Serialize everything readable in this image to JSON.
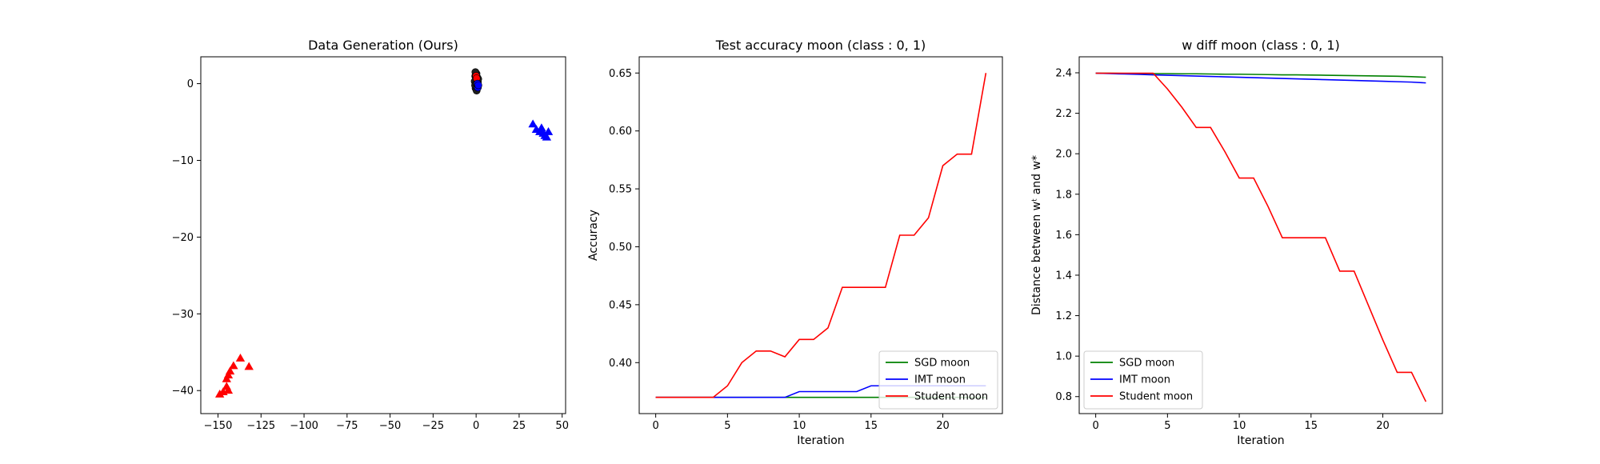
{
  "chart_data": [
    {
      "type": "scatter",
      "title": "Data Generation (Ours)",
      "xlabel": "",
      "ylabel": "",
      "xlim": [
        -160,
        52
      ],
      "ylim": [
        -43,
        3.5
      ],
      "xticks": [
        -150,
        -125,
        -100,
        -75,
        -50,
        -25,
        0,
        25,
        50
      ],
      "yticks": [
        0,
        -10,
        -20,
        -30,
        -40
      ],
      "series": [
        {
          "marker": "circle",
          "color": "#1f1f1f",
          "points": [
            [
              0,
              0.5
            ],
            [
              -0.5,
              1.0
            ],
            [
              0.5,
              -0.3
            ],
            [
              1.0,
              0.2
            ],
            [
              -0.3,
              -0.6
            ],
            [
              0.2,
              1.3
            ],
            [
              -0.8,
              0.3
            ],
            [
              0.7,
              0.8
            ],
            [
              0.3,
              -0.9
            ],
            [
              -0.4,
              1.5
            ],
            [
              0.9,
              -0.5
            ],
            [
              -0.6,
              -0.2
            ],
            [
              0.1,
              0.0
            ],
            [
              1.2,
              0.6
            ],
            [
              -0.2,
              0.9
            ]
          ]
        },
        {
          "marker": "circle",
          "color": "#ff0000",
          "points": [
            [
              0,
              1.0
            ],
            [
              0.3,
              0.7
            ]
          ]
        },
        {
          "marker": "circle",
          "color": "#0000ff",
          "points": [
            [
              1,
              -0.5
            ],
            [
              0.8,
              0.0
            ],
            [
              1.3,
              -0.2
            ]
          ]
        },
        {
          "marker": "triangle",
          "color": "#0000ff",
          "points": [
            [
              33,
              -5.3
            ],
            [
              35,
              -6.0
            ],
            [
              37,
              -6.3
            ],
            [
              38,
              -5.8
            ],
            [
              40,
              -6.8
            ],
            [
              41,
              -7.0
            ],
            [
              42,
              -6.3
            ],
            [
              39,
              -6.5
            ]
          ]
        },
        {
          "marker": "triangle",
          "color": "#ff0000",
          "points": [
            [
              -149,
              -40.5
            ],
            [
              -147,
              -40.2
            ],
            [
              -145,
              -39.5
            ],
            [
              -144,
              -40.0
            ],
            [
              -145,
              -38.5
            ],
            [
              -143,
              -37.5
            ],
            [
              -141,
              -36.8
            ],
            [
              -137,
              -35.8
            ],
            [
              -132,
              -36.9
            ],
            [
              -144,
              -38.0
            ]
          ]
        }
      ]
    },
    {
      "type": "line",
      "title": "Test accuracy moon (class : 0, 1)",
      "xlabel": "Iteration",
      "ylabel": "Accuracy",
      "xlim": [
        -1.15,
        24.15
      ],
      "ylim": [
        0.356,
        0.664
      ],
      "xticks": [
        0,
        5,
        10,
        15,
        20
      ],
      "yticks": [
        0.4,
        0.45,
        0.5,
        0.55,
        0.6,
        0.65
      ],
      "ytick_labels": [
        "0.40",
        "0.45",
        "0.50",
        "0.55",
        "0.60",
        "0.65"
      ],
      "legend_position": "lower-right",
      "x": [
        0,
        1,
        2,
        3,
        4,
        5,
        6,
        7,
        8,
        9,
        10,
        11,
        12,
        13,
        14,
        15,
        16,
        17,
        18,
        19,
        20,
        21,
        22,
        23
      ],
      "series": [
        {
          "name": "SGD moon",
          "color": "#008000",
          "values": [
            0.37,
            0.37,
            0.37,
            0.37,
            0.37,
            0.37,
            0.37,
            0.37,
            0.37,
            0.37,
            0.37,
            0.37,
            0.37,
            0.37,
            0.37,
            0.37,
            0.37,
            0.37,
            0.37,
            0.37,
            0.37,
            0.37,
            0.37,
            0.37
          ]
        },
        {
          "name": "IMT moon",
          "color": "#0000ff",
          "values": [
            0.37,
            0.37,
            0.37,
            0.37,
            0.37,
            0.37,
            0.37,
            0.37,
            0.37,
            0.37,
            0.375,
            0.375,
            0.375,
            0.375,
            0.375,
            0.38,
            0.38,
            0.38,
            0.38,
            0.38,
            0.38,
            0.38,
            0.38,
            0.38
          ]
        },
        {
          "name": "Student moon",
          "color": "#ff0000",
          "values": [
            0.37,
            0.37,
            0.37,
            0.37,
            0.37,
            0.38,
            0.4,
            0.41,
            0.41,
            0.405,
            0.42,
            0.42,
            0.43,
            0.465,
            0.465,
            0.465,
            0.465,
            0.51,
            0.51,
            0.525,
            0.57,
            0.58,
            0.58,
            0.65
          ]
        }
      ]
    },
    {
      "type": "line",
      "title": "w diff moon (class : 0, 1)",
      "xlabel": "Iteration",
      "ylabel": "Distance between wᵗ and w*",
      "xlim": [
        -1.15,
        24.15
      ],
      "ylim": [
        0.716,
        2.479
      ],
      "xticks": [
        0,
        5,
        10,
        15,
        20
      ],
      "yticks": [
        0.8,
        1.0,
        1.2,
        1.4,
        1.6,
        1.8,
        2.0,
        2.2,
        2.4
      ],
      "ytick_labels": [
        "0.8",
        "1.0",
        "1.2",
        "1.4",
        "1.6",
        "1.8",
        "2.0",
        "2.2",
        "2.4"
      ],
      "legend_position": "lower-left",
      "x": [
        0,
        1,
        2,
        3,
        4,
        5,
        6,
        7,
        8,
        9,
        10,
        11,
        12,
        13,
        14,
        15,
        16,
        17,
        18,
        19,
        20,
        21,
        22,
        23
      ],
      "series": [
        {
          "name": "SGD moon",
          "color": "#008000",
          "values": [
            2.398,
            2.398,
            2.397,
            2.397,
            2.396,
            2.396,
            2.395,
            2.395,
            2.394,
            2.393,
            2.393,
            2.392,
            2.391,
            2.39,
            2.39,
            2.389,
            2.388,
            2.387,
            2.386,
            2.385,
            2.384,
            2.383,
            2.381,
            2.378
          ]
        },
        {
          "name": "IMT moon",
          "color": "#0000ff",
          "values": [
            2.398,
            2.396,
            2.394,
            2.392,
            2.39,
            2.388,
            2.386,
            2.384,
            2.382,
            2.38,
            2.378,
            2.376,
            2.374,
            2.372,
            2.37,
            2.368,
            2.366,
            2.364,
            2.362,
            2.36,
            2.358,
            2.356,
            2.354,
            2.35
          ]
        },
        {
          "name": "Student moon",
          "color": "#ff0000",
          "values": [
            2.398,
            2.398,
            2.398,
            2.398,
            2.398,
            2.32,
            2.23,
            2.13,
            2.13,
            2.01,
            1.88,
            1.88,
            1.74,
            1.585,
            1.585,
            1.585,
            1.585,
            1.42,
            1.42,
            1.25,
            1.08,
            0.92,
            0.92,
            0.775
          ]
        }
      ]
    }
  ]
}
